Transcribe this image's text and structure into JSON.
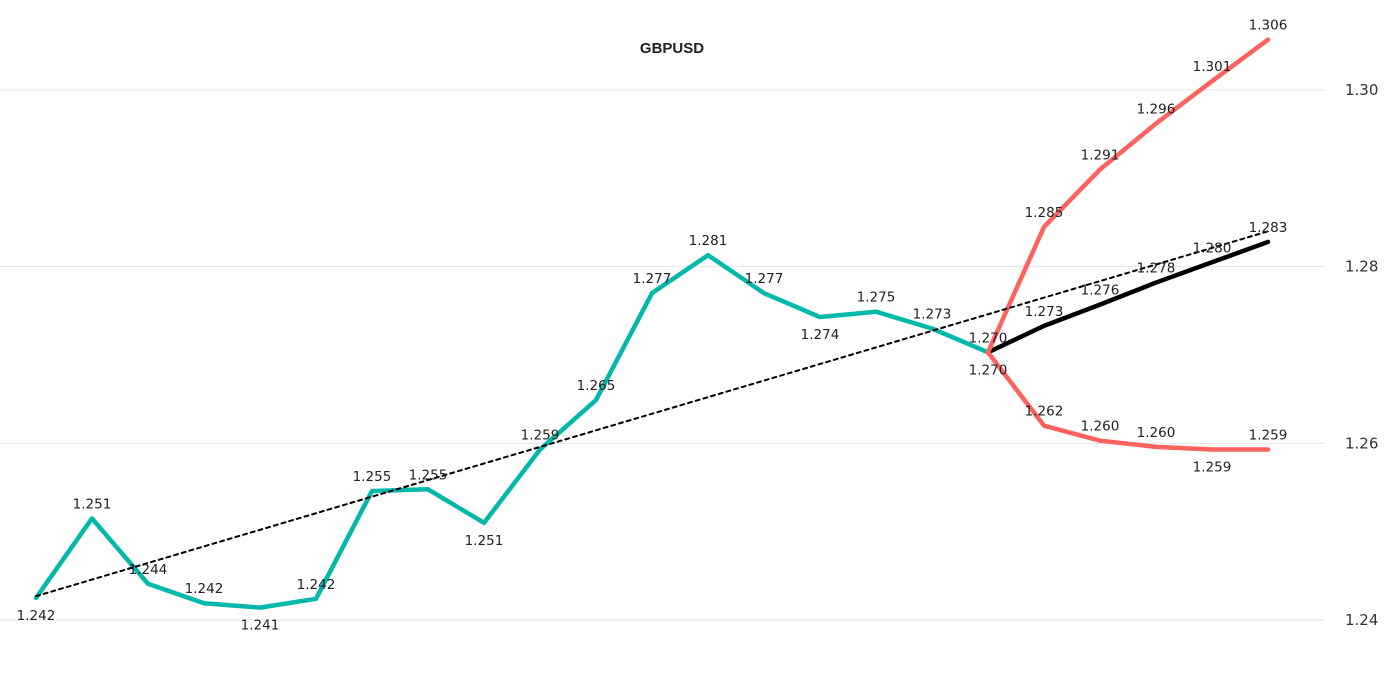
{
  "chart_data": {
    "type": "line",
    "title": "GBPUSD",
    "xlabel": "",
    "ylabel": "",
    "ylim": [
      1.24,
      1.3
    ],
    "yticks": [
      "1.24",
      "1.26",
      "1.28",
      "1.30"
    ],
    "grid": true,
    "legend": "none",
    "x": [
      1,
      2,
      3,
      4,
      5,
      6,
      7,
      8,
      9,
      10,
      11,
      12,
      13,
      14,
      15,
      16,
      17,
      18,
      19,
      20,
      21,
      22,
      23
    ],
    "series": [
      {
        "role": "actual",
        "color": "#01b8aa",
        "x": [
          1,
          2,
          3,
          4,
          5,
          6,
          7,
          8,
          9,
          10,
          11,
          12,
          13,
          14,
          15,
          16,
          17,
          18
        ],
        "values": [
          1.2425,
          1.2515,
          1.2441,
          1.2419,
          1.2414,
          1.2424,
          1.2546,
          1.2548,
          1.251,
          1.2593,
          1.2649,
          1.277,
          1.2813,
          1.277,
          1.2743,
          1.2749,
          1.273,
          1.2703
        ],
        "labels": [
          "1.242",
          "1.251",
          "1.244",
          "1.242",
          "1.241",
          "1.242",
          "1.255",
          "1.255",
          "1.251",
          "1.259",
          "1.265",
          "1.277",
          "1.281",
          "1.277",
          "1.274",
          "1.275",
          "1.273",
          "1.270"
        ],
        "label_pos": [
          "below",
          "above",
          "above",
          "above",
          "below",
          "above",
          "above",
          "above",
          "below",
          "above",
          "above",
          "above",
          "above",
          "above",
          "below",
          "above",
          "above",
          "above"
        ]
      },
      {
        "role": "forecast",
        "color": "#000000",
        "x": [
          18,
          19,
          20,
          21,
          22,
          23
        ],
        "values": [
          1.2703,
          1.2733,
          1.2757,
          1.2782,
          1.2805,
          1.2828
        ],
        "labels": [
          "",
          "1.273",
          "1.276",
          "1.278",
          "1.280",
          "1.283"
        ],
        "label_pos": [
          "above",
          "above",
          "above",
          "above",
          "above",
          "above"
        ]
      },
      {
        "role": "upper-bound",
        "color": "#fd625e",
        "x": [
          18,
          19,
          20,
          21,
          22,
          23
        ],
        "values": [
          1.2703,
          1.2845,
          1.291,
          1.2962,
          1.301,
          1.3057
        ],
        "labels": [
          "",
          "1.285",
          "1.291",
          "1.296",
          "1.301",
          "1.306"
        ],
        "label_pos": [
          "above",
          "above",
          "above",
          "above",
          "above",
          "above"
        ]
      },
      {
        "role": "lower-bound",
        "color": "#fd625e",
        "x": [
          18,
          19,
          20,
          21,
          22,
          23
        ],
        "values": [
          1.2703,
          1.262,
          1.2603,
          1.2596,
          1.2593,
          1.2593
        ],
        "labels": [
          "1.270",
          "1.262",
          "1.260",
          "1.260",
          "1.259",
          "1.259"
        ],
        "label_pos": [
          "below",
          "above",
          "above",
          "above",
          "below",
          "above"
        ]
      },
      {
        "role": "trend",
        "color": "#000000",
        "dashed": true,
        "x": [
          1,
          23
        ],
        "values": [
          1.2427,
          1.284
        ],
        "labels": [
          "",
          ""
        ],
        "label_pos": [
          "above",
          "above"
        ]
      }
    ]
  }
}
